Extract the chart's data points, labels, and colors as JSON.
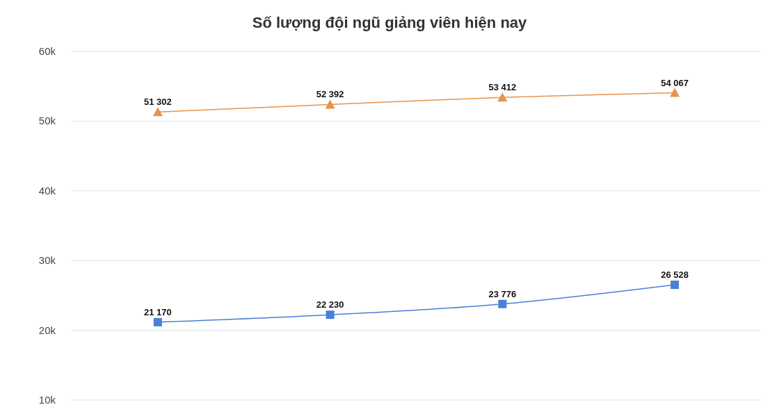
{
  "chart_data": {
    "type": "line",
    "title": "Số lượng đội ngũ giảng viên hiện nay",
    "categories": [
      null,
      null,
      null,
      null
    ],
    "series": [
      {
        "color": "#e8934a",
        "marker": "triangle",
        "values": [
          51302,
          52392,
          53412,
          54067
        ],
        "value_labels": [
          "51 302",
          "52 392",
          "53 412",
          "54 067"
        ]
      },
      {
        "color": "#4a7fd6",
        "marker": "square",
        "values": [
          21170,
          22230,
          23776,
          26528
        ],
        "value_labels": [
          "21 170",
          "22 230",
          "23 776",
          "26 528"
        ]
      }
    ],
    "ylim": [
      10000,
      60000
    ],
    "yticks": [
      {
        "value": 10000,
        "label": "10k"
      },
      {
        "value": 20000,
        "label": "20k"
      },
      {
        "value": 30000,
        "label": "30k"
      },
      {
        "value": 40000,
        "label": "40k"
      },
      {
        "value": 50000,
        "label": "50k"
      },
      {
        "value": 60000,
        "label": "60k"
      }
    ],
    "grid": "y",
    "tick_labels": "y"
  }
}
